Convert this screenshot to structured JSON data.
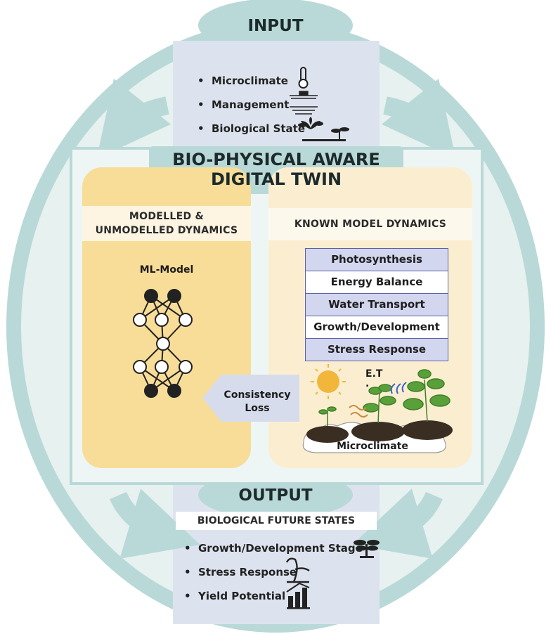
{
  "input": {
    "title": "INPUT",
    "items": [
      {
        "label": "Microclimate",
        "icon": "thermometer-icon"
      },
      {
        "label": "Management",
        "icon": "tractor-field-icon"
      },
      {
        "label": "Biological State",
        "icon": "plants-icon"
      }
    ]
  },
  "twin": {
    "title_line1": "BIO-PHYSICAL AWARE",
    "title_line2": "DIGITAL TWIN"
  },
  "left_panel": {
    "title_line1": "MODELLED &",
    "title_line2": "UNMODELLED DYNAMICS",
    "model_label": "ML-Model"
  },
  "right_panel": {
    "title": "KNOWN MODEL DYNAMICS",
    "rows": [
      "Photosynthesis",
      "Energy Balance",
      "Water Transport",
      "Growth/Development",
      "Stress Response"
    ],
    "et_label": "E.T",
    "et_dot": ".",
    "microclimate_label": "Microclimate"
  },
  "consistency": {
    "line1": "Consistency",
    "line2": "Loss"
  },
  "output": {
    "title": "OUTPUT",
    "subtitle": "BIOLOGICAL FUTURE STATES",
    "items": [
      {
        "label": "Growth/Development Stage",
        "icon": "plant-stage-icon"
      },
      {
        "label": "Stress Response",
        "icon": "wilted-plant-icon"
      },
      {
        "label": "Yield Potential",
        "icon": "bar-growth-icon"
      }
    ]
  },
  "colors": {
    "ellipse": "#b9d9d8",
    "ellipse_inner": "#e6f1f0",
    "input_box": "#dde3ee",
    "left_panel": "#f7dd97",
    "right_panel": "#fbeed0",
    "table_shade": "#d3d6ef",
    "table_border": "#5b62a8"
  }
}
